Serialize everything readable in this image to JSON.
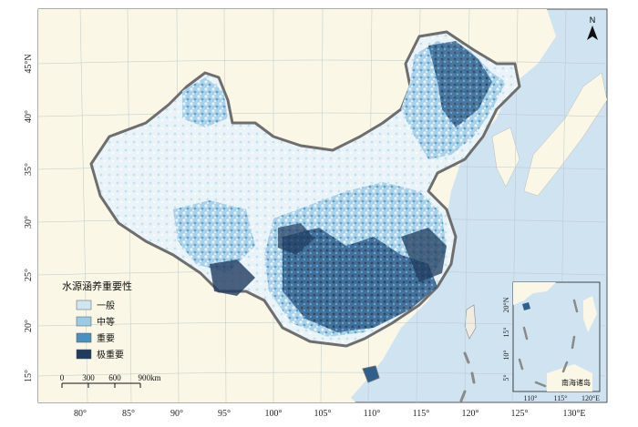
{
  "legend": {
    "title": "水源涵养重要性",
    "items": [
      {
        "label": "一般",
        "color": "#cfe6f2"
      },
      {
        "label": "中等",
        "color": "#9ccbe4"
      },
      {
        "label": "重要",
        "color": "#4a91c2"
      },
      {
        "label": "极重要",
        "color": "#1f3b5e"
      }
    ]
  },
  "scale_bar": {
    "labels": [
      "0",
      "300",
      "600",
      "900km"
    ]
  },
  "north_arrow": {
    "label": "N"
  },
  "axes": {
    "lon_labels": [
      "80°",
      "85°",
      "90°",
      "95°",
      "100°",
      "105°",
      "110°",
      "115°",
      "120°",
      "125°",
      "130°E"
    ],
    "lat_labels": [
      "45°N",
      "40°",
      "35°",
      "30°",
      "25°",
      "20°",
      "15°"
    ]
  },
  "inset": {
    "title": "南海诸岛",
    "lat_labels": [
      "20°N",
      "15°",
      "10°",
      "5°"
    ],
    "lon_labels": [
      "110°",
      "115°",
      "120°E"
    ]
  },
  "colors": {
    "sea": "#cfe3f1",
    "land": "#fbf7e6",
    "border": "#7d7d7d"
  }
}
